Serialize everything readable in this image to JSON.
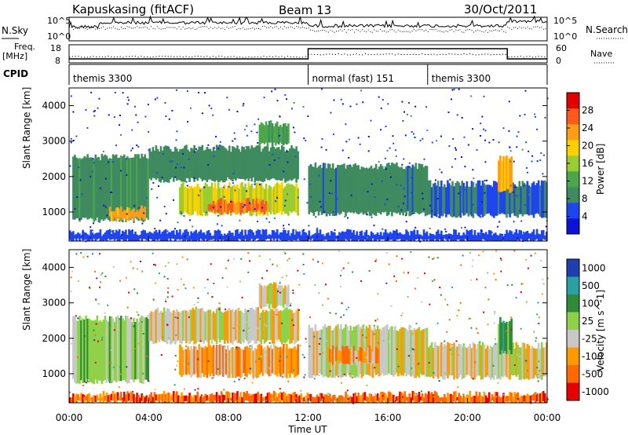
{
  "header": {
    "station": "Kapuskasing (fitACF)",
    "beam": "Beam 13",
    "date": "30/Oct/2011"
  },
  "top_panels": {
    "nsky_label": "N.Sky",
    "nsearch_label": "N.Search",
    "noise_ticks": [
      "10^5",
      "10^0"
    ],
    "freq_label_1": "Freq.",
    "freq_label_2": "[MHz]",
    "freq_ticks": [
      "18",
      "8"
    ],
    "nave_label": "Nave",
    "nave_ticks": [
      "60",
      "0"
    ],
    "cpid_label": "CPID",
    "cpid_segments": [
      {
        "label": "themis 3300",
        "start_hour": 0,
        "end_hour": 12
      },
      {
        "label": "normal (fast) 151",
        "start_hour": 12,
        "end_hour": 18
      },
      {
        "label": "themis 3300",
        "start_hour": 18,
        "end_hour": 24
      }
    ]
  },
  "x_axis": {
    "label": "Time UT",
    "ticks": [
      "00:00",
      "04:00",
      "08:00",
      "12:00",
      "16:00",
      "20:00",
      "00:00"
    ]
  },
  "chart_data": [
    {
      "type": "heatmap",
      "title": "",
      "ylabel": "Slant Range [km]",
      "xlabel": "Time UT",
      "xlim_hours": [
        0,
        24
      ],
      "ylim": [
        180,
        4500
      ],
      "y_ticks": [
        1000,
        2000,
        3000,
        4000
      ],
      "colorbar": {
        "label": "Power [dB]",
        "range": [
          0,
          32
        ],
        "ticks": [
          4,
          8,
          12,
          16,
          20,
          24,
          28
        ],
        "colors": [
          "#0a14d2",
          "#1f45ee",
          "#3f8a5e",
          "#4ca74b",
          "#9acd32",
          "#ffd000",
          "#ff9c1a",
          "#ff5a1a",
          "#e00000"
        ]
      },
      "bands": [
        {
          "t0": 0.2,
          "t1": 4.0,
          "r0": 780,
          "r1": 2550,
          "value": 10
        },
        {
          "t0": 2.0,
          "t1": 3.8,
          "r0": 800,
          "r1": 1100,
          "value": 22
        },
        {
          "t0": 4.0,
          "t1": 11.5,
          "r0": 1900,
          "r1": 2800,
          "value": 9
        },
        {
          "t0": 5.5,
          "t1": 11.5,
          "r0": 950,
          "r1": 1750,
          "value": 18
        },
        {
          "t0": 7.0,
          "t1": 10.0,
          "r0": 1000,
          "r1": 1300,
          "value": 25
        },
        {
          "t0": 9.5,
          "t1": 11.0,
          "r0": 2900,
          "r1": 3500,
          "value": 11
        },
        {
          "t0": 12.0,
          "t1": 18.0,
          "r0": 950,
          "r1": 2300,
          "value": 8
        },
        {
          "t0": 18.0,
          "t1": 24.0,
          "r0": 900,
          "r1": 1800,
          "value": 7
        },
        {
          "t0": 21.5,
          "t1": 22.2,
          "r0": 1600,
          "r1": 2500,
          "value": 22
        },
        {
          "t0": 0.0,
          "t1": 24.0,
          "r0": 180,
          "r1": 420,
          "value": 6
        }
      ]
    },
    {
      "type": "heatmap",
      "title": "",
      "ylabel": "Slant Range [km]",
      "xlabel": "Time UT",
      "xlim_hours": [
        0,
        24
      ],
      "ylim": [
        180,
        4500
      ],
      "y_ticks": [
        1000,
        2000,
        3000,
        4000
      ],
      "colorbar": {
        "label": "Velocity [m s^-1]",
        "tick_labels": [
          "1000",
          "500",
          "100",
          "25",
          "-25",
          "-100",
          "-500",
          "-1000"
        ],
        "colors": [
          "#1f3fb0",
          "#2aa0a0",
          "#2f8b3a",
          "#8fd24a",
          "#c8c8c8",
          "#ff9a00",
          "#ff6a00",
          "#e60000"
        ]
      },
      "bands": [
        {
          "t0": 0.2,
          "t1": 4.0,
          "r0": 780,
          "r1": 2550,
          "value": 3
        },
        {
          "t0": 4.0,
          "t1": 11.5,
          "r0": 1900,
          "r1": 2800,
          "value": 4
        },
        {
          "t0": 5.5,
          "t1": 11.5,
          "r0": 950,
          "r1": 1750,
          "value": 5
        },
        {
          "t0": 9.5,
          "t1": 11.0,
          "r0": 2900,
          "r1": 3500,
          "value": 4
        },
        {
          "t0": 12.0,
          "t1": 18.0,
          "r0": 950,
          "r1": 2300,
          "value": 4
        },
        {
          "t0": 13.0,
          "t1": 15.5,
          "r0": 1300,
          "r1": 1700,
          "value": 5
        },
        {
          "t0": 18.0,
          "t1": 24.0,
          "r0": 900,
          "r1": 1800,
          "value": 4
        },
        {
          "t0": 21.5,
          "t1": 22.2,
          "r0": 1600,
          "r1": 2500,
          "value": 2
        },
        {
          "t0": 0.0,
          "t1": 24.0,
          "r0": 180,
          "r1": 420,
          "value": 6
        }
      ]
    }
  ]
}
